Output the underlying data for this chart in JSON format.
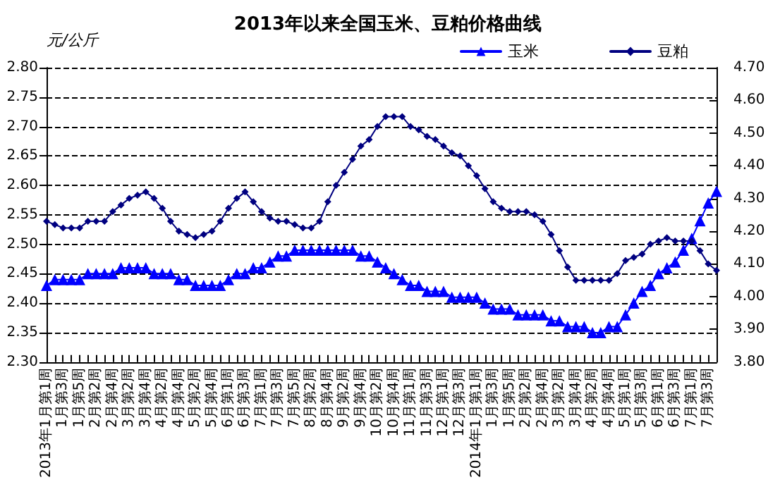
{
  "chart_data": {
    "type": "line",
    "title": "2013年以来全国玉米、豆粕价格曲线",
    "ylabel": "元/公斤",
    "categories": [
      "2013年1月第1周",
      null,
      "1月第3周",
      null,
      "1月第5周",
      null,
      "2月第2周",
      null,
      "2月第4周",
      null,
      "3月第2周",
      null,
      "3月第4周",
      null,
      "4月第2周",
      null,
      "4月第4周",
      null,
      "5月第2周",
      null,
      "5月第4周",
      null,
      "6月第1周",
      null,
      "6月第3周",
      null,
      "7月第1周",
      null,
      "7月第3周",
      null,
      "7月第5周",
      null,
      "8月第2周",
      null,
      "8月第4周",
      null,
      "9月第2周",
      null,
      "9月第4周",
      null,
      "10月第2周",
      null,
      "10月第4周",
      null,
      "11月第1周",
      null,
      "11月第3周",
      null,
      "12月第1周",
      null,
      "12月第3周",
      null,
      "2014年1月第1周",
      null,
      "1月第3周",
      null,
      "1月第5周",
      null,
      "2月第2周",
      null,
      "2月第4周",
      null,
      "3月第2周",
      null,
      "3月第4周",
      null,
      "4月第2周",
      null,
      "4月第4周",
      null,
      "5月第1周",
      null,
      "5月第3周",
      null,
      "6月第1周",
      null,
      "6月第3周",
      null,
      "7月第1周",
      null,
      "7月第3周",
      null
    ],
    "series": [
      {
        "name": "玉米",
        "color": "#0000ff",
        "marker": "triangle",
        "values": [
          2.43,
          2.44,
          2.44,
          2.44,
          2.44,
          2.45,
          2.45,
          2.45,
          2.45,
          2.46,
          2.46,
          2.46,
          2.46,
          2.45,
          2.45,
          2.45,
          2.44,
          2.44,
          2.43,
          2.43,
          2.43,
          2.43,
          2.44,
          2.45,
          2.45,
          2.46,
          2.46,
          2.47,
          2.48,
          2.48,
          2.49,
          2.49,
          2.49,
          2.49,
          2.49,
          2.49,
          2.49,
          2.49,
          2.48,
          2.48,
          2.47,
          2.46,
          2.45,
          2.44,
          2.43,
          2.43,
          2.42,
          2.42,
          2.42,
          2.41,
          2.41,
          2.41,
          2.41,
          2.4,
          2.39,
          2.39,
          2.39,
          2.38,
          2.38,
          2.38,
          2.38,
          2.37,
          2.37,
          2.36,
          2.36,
          2.36,
          2.35,
          2.35,
          2.36,
          2.36,
          2.38,
          2.4,
          2.42,
          2.43,
          2.45,
          2.46,
          2.47,
          2.49,
          2.51,
          2.54,
          2.57,
          2.59
        ]
      },
      {
        "name": "豆粕",
        "color": "#000080",
        "marker": "diamond",
        "axis": "y2",
        "values": [
          4.23,
          4.22,
          4.21,
          4.21,
          4.21,
          4.23,
          4.23,
          4.23,
          4.26,
          4.28,
          4.3,
          4.31,
          4.32,
          4.3,
          4.27,
          4.23,
          4.2,
          4.19,
          4.18,
          4.19,
          4.2,
          4.23,
          4.27,
          4.3,
          4.32,
          4.29,
          4.26,
          4.24,
          4.23,
          4.23,
          4.22,
          4.21,
          4.21,
          4.23,
          4.29,
          4.34,
          4.38,
          4.42,
          4.46,
          4.48,
          4.52,
          4.55,
          4.55,
          4.55,
          4.52,
          4.51,
          4.49,
          4.48,
          4.46,
          4.44,
          4.43,
          4.4,
          4.37,
          4.33,
          4.29,
          4.27,
          4.26,
          4.26,
          4.26,
          4.25,
          4.23,
          4.19,
          4.14,
          4.09,
          4.05,
          4.05,
          4.05,
          4.05,
          4.05,
          4.07,
          4.11,
          4.12,
          4.13,
          4.16,
          4.17,
          4.18,
          4.17,
          4.17,
          4.17,
          4.14,
          4.1,
          4.08
        ]
      }
    ],
    "ylim": [
      2.3,
      2.8
    ],
    "yticks": [
      {
        "value": 2.3,
        "label": "2.30"
      },
      {
        "value": 2.35,
        "label": "2.35"
      },
      {
        "value": 2.4,
        "label": "2.40"
      },
      {
        "value": 2.45,
        "label": "2.45"
      },
      {
        "value": 2.5,
        "label": "2.50"
      },
      {
        "value": 2.55,
        "label": "2.55"
      },
      {
        "value": 2.6,
        "label": "2.60"
      },
      {
        "value": 2.65,
        "label": "2.65"
      },
      {
        "value": 2.7,
        "label": "2.70"
      },
      {
        "value": 2.75,
        "label": "2.75"
      },
      {
        "value": 2.8,
        "label": "2.80"
      }
    ],
    "y2lim": [
      3.8,
      4.7
    ],
    "y2ticks": [
      {
        "value": 3.8,
        "label": "3.80"
      },
      {
        "value": 3.9,
        "label": "3.90"
      },
      {
        "value": 4.0,
        "label": "4.00"
      },
      {
        "value": 4.1,
        "label": "4.10"
      },
      {
        "value": 4.2,
        "label": "4.20"
      },
      {
        "value": 4.3,
        "label": "4.30"
      },
      {
        "value": 4.4,
        "label": "4.40"
      },
      {
        "value": 4.5,
        "label": "4.50"
      },
      {
        "value": 4.6,
        "label": "4.60"
      },
      {
        "value": 4.7,
        "label": "4.70"
      }
    ],
    "grid": "y",
    "legend": "top right",
    "line_style": "solid"
  }
}
